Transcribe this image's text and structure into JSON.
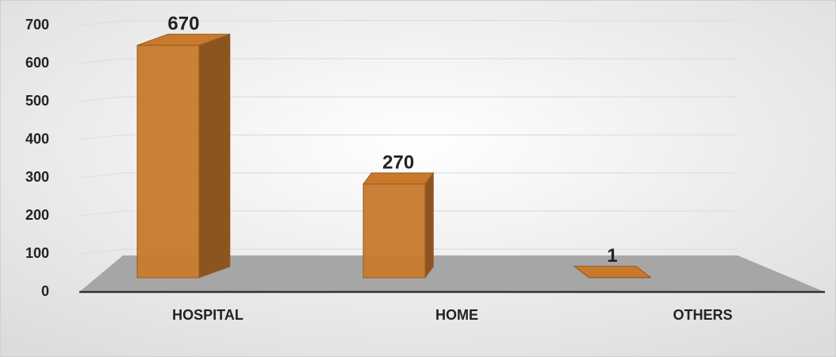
{
  "chart_data": {
    "type": "bar3d",
    "categories": [
      "HOSPITAL",
      "HOME",
      "OTHERS"
    ],
    "values": [
      670,
      270,
      1
    ],
    "color": "#c8792c",
    "ylim": [
      0,
      700
    ],
    "yticks": [
      0,
      100,
      200,
      300,
      400,
      500,
      600,
      700
    ],
    "grid": true
  }
}
